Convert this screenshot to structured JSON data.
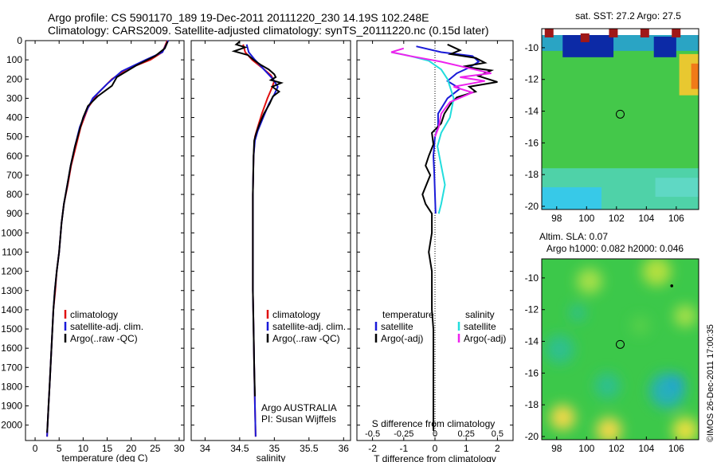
{
  "header": {
    "line1": "Argo profile: CS 5901170_189 19-Dec-2011 20111220_230 14.19S 102.248E",
    "line2": "Climatology: CARS2009. Satellite-adjusted climatology: synTS_20111220.nc (0.15d later)"
  },
  "stamp": "©IMOS 26-Dec-2011 17:00:35",
  "colors": {
    "climatology": "#e01010",
    "satellite": "#1a1ad8",
    "argo": "#000000",
    "cyan": "#22dddd",
    "magenta": "#ee22ee"
  },
  "chart_data": [
    {
      "type": "line",
      "xlabel": "temperature (deg C)",
      "ylabel": "",
      "xlim": [
        -2,
        31
      ],
      "ylim": [
        2080,
        0
      ],
      "xticks": [
        0,
        5,
        10,
        15,
        20,
        25,
        30
      ],
      "yticks": [
        0,
        100,
        200,
        300,
        400,
        500,
        600,
        700,
        800,
        900,
        1000,
        1100,
        1200,
        1300,
        1400,
        1500,
        1600,
        1700,
        1800,
        1900,
        2000
      ],
      "legend": [
        "climatology",
        "satellite-adj. clim.",
        "Argo(..raw -QC)"
      ],
      "legend_loc": "bottom-middle",
      "series": [
        {
          "name": "climatology",
          "color_key": "climatology",
          "points": [
            [
              27.5,
              0
            ],
            [
              26.5,
              60
            ],
            [
              24,
              100
            ],
            [
              19,
              150
            ],
            [
              16,
              200
            ],
            [
              13,
              275
            ],
            [
              11,
              350
            ],
            [
              9.5,
              450
            ],
            [
              8.5,
              550
            ],
            [
              7.5,
              650
            ],
            [
              6.8,
              750
            ],
            [
              6,
              850
            ],
            [
              5.5,
              950
            ],
            [
              5,
              1100
            ],
            [
              4.5,
              1200
            ],
            [
              4.2,
              1300
            ],
            [
              3.8,
              1400
            ],
            [
              3.6,
              1500
            ],
            [
              3.4,
              1600
            ],
            [
              3.2,
              1700
            ],
            [
              3.0,
              1800
            ],
            [
              2.8,
              1900
            ],
            [
              2.6,
              2000
            ],
            [
              2.5,
              2060
            ]
          ]
        },
        {
          "name": "satellite-adj. clim.",
          "color_key": "satellite",
          "points": [
            [
              27.7,
              0
            ],
            [
              26.5,
              60
            ],
            [
              23,
              100
            ],
            [
              18,
              160
            ],
            [
              15,
              225
            ],
            [
              12,
              300
            ],
            [
              10.5,
              375
            ],
            [
              9.3,
              450
            ],
            [
              8.3,
              550
            ],
            [
              7.4,
              650
            ],
            [
              6.7,
              750
            ],
            [
              6,
              850
            ],
            [
              5.5,
              950
            ],
            [
              5,
              1100
            ],
            [
              4.5,
              1200
            ],
            [
              4.1,
              1300
            ],
            [
              3.8,
              1400
            ],
            [
              3.6,
              1500
            ],
            [
              3.4,
              1600
            ],
            [
              3.2,
              1700
            ],
            [
              3.0,
              1800
            ],
            [
              2.8,
              1900
            ],
            [
              2.6,
              2000
            ],
            [
              2.5,
              2060
            ]
          ]
        },
        {
          "name": "Argo(..raw -QC)",
          "color_key": "argo",
          "points": [
            [
              27.6,
              5
            ],
            [
              27,
              40
            ],
            [
              25,
              80
            ],
            [
              21,
              130
            ],
            [
              17,
              190
            ],
            [
              16,
              235
            ],
            [
              13,
              290
            ],
            [
              11,
              340
            ],
            [
              10,
              400
            ],
            [
              9.2,
              470
            ],
            [
              8.3,
              550
            ],
            [
              7.4,
              650
            ],
            [
              6.7,
              750
            ],
            [
              6,
              850
            ],
            [
              5.5,
              950
            ],
            [
              5,
              1100
            ],
            [
              4.5,
              1200
            ],
            [
              4.1,
              1300
            ],
            [
              3.8,
              1400
            ],
            [
              3.6,
              1500
            ],
            [
              3.4,
              1600
            ],
            [
              3.2,
              1700
            ],
            [
              3.0,
              1800
            ],
            [
              2.8,
              1900
            ],
            [
              2.6,
              2000
            ],
            [
              2.5,
              2040
            ]
          ]
        }
      ]
    },
    {
      "type": "line",
      "xlabel": "salinity",
      "xlim": [
        33.8,
        36.1
      ],
      "ylim": [
        2080,
        0
      ],
      "xticks": [
        34,
        34.5,
        35,
        35.5,
        36
      ],
      "legend": [
        "climatology",
        "satellite-adj. clim.",
        "Argo(..raw -QC)"
      ],
      "legend_loc": "bottom-right",
      "annotation": [
        "Argo AUSTRALIA",
        "PI: Susan Wijffels"
      ],
      "series": [
        {
          "name": "climatology",
          "color_key": "climatology",
          "points": [
            [
              34.55,
              20
            ],
            [
              34.58,
              60
            ],
            [
              34.68,
              100
            ],
            [
              34.82,
              140
            ],
            [
              34.95,
              180
            ],
            [
              35.0,
              210
            ],
            [
              34.96,
              250
            ],
            [
              34.9,
              300
            ],
            [
              34.82,
              380
            ],
            [
              34.76,
              450
            ],
            [
              34.72,
              500
            ],
            [
              34.7,
              600
            ],
            [
              34.69,
              800
            ],
            [
              34.69,
              1000
            ],
            [
              34.69,
              1300
            ],
            [
              34.7,
              1500
            ],
            [
              34.71,
              1700
            ],
            [
              34.72,
              1900
            ],
            [
              34.73,
              2060
            ]
          ]
        },
        {
          "name": "satellite-adj. clim.",
          "color_key": "satellite",
          "points": [
            [
              34.6,
              20
            ],
            [
              34.63,
              60
            ],
            [
              34.72,
              100
            ],
            [
              34.85,
              150
            ],
            [
              34.98,
              200
            ],
            [
              35.05,
              240
            ],
            [
              35.0,
              280
            ],
            [
              34.92,
              330
            ],
            [
              34.84,
              400
            ],
            [
              34.76,
              470
            ],
            [
              34.72,
              520
            ],
            [
              34.7,
              600
            ],
            [
              34.69,
              800
            ],
            [
              34.69,
              1000
            ],
            [
              34.69,
              1300
            ],
            [
              34.7,
              1500
            ],
            [
              34.71,
              1700
            ],
            [
              34.72,
              1900
            ],
            [
              34.73,
              2060
            ]
          ]
        },
        {
          "name": "Argo(..raw -QC)",
          "color_key": "argo",
          "points": [
            [
              34.5,
              5
            ],
            [
              34.45,
              20
            ],
            [
              34.58,
              35
            ],
            [
              34.42,
              55
            ],
            [
              34.62,
              75
            ],
            [
              34.7,
              100
            ],
            [
              34.8,
              125
            ],
            [
              34.92,
              150
            ],
            [
              35.0,
              175
            ],
            [
              35.02,
              190
            ],
            [
              34.95,
              205
            ],
            [
              35.1,
              220
            ],
            [
              34.97,
              240
            ],
            [
              35.07,
              265
            ],
            [
              34.98,
              290
            ],
            [
              34.93,
              330
            ],
            [
              34.85,
              380
            ],
            [
              34.79,
              430
            ],
            [
              34.74,
              480
            ],
            [
              34.71,
              520
            ],
            [
              34.7,
              600
            ],
            [
              34.69,
              800
            ],
            [
              34.69,
              1000
            ],
            [
              34.69,
              1300
            ],
            [
              34.7,
              1500
            ],
            [
              34.71,
              1700
            ],
            [
              34.72,
              1850
            ]
          ]
        }
      ]
    },
    {
      "type": "line",
      "xlabel": "T difference from climatology",
      "xlabel_top": "S difference from climatology",
      "xlim": [
        -2.5,
        2.5
      ],
      "ylim": [
        2080,
        0
      ],
      "xticks": [
        -2,
        -1,
        0,
        1,
        2
      ],
      "xticks_s": [
        -0.5,
        -0.25,
        0,
        0.25,
        0.5
      ],
      "legend_t": [
        "temperature",
        "satellite",
        "Argo(-adj)"
      ],
      "legend_s": [
        "salinity",
        "satellite",
        "Argo(-adj)"
      ],
      "legend_loc": "bottom",
      "series": [
        {
          "name": "temperature satellite",
          "color_key": "satellite",
          "points": [
            [
              -0.6,
              30
            ],
            [
              0.2,
              60
            ],
            [
              1.2,
              80
            ],
            [
              1.4,
              110
            ],
            [
              1.1,
              140
            ],
            [
              0.7,
              170
            ],
            [
              0.4,
              210
            ],
            [
              0.8,
              250
            ],
            [
              0.4,
              300
            ],
            [
              0.1,
              380
            ],
            [
              0.1,
              450
            ],
            [
              0.0,
              500
            ],
            [
              -0.05,
              600
            ],
            [
              -0.02,
              700
            ],
            [
              0.0,
              800
            ],
            [
              0.02,
              900
            ]
          ]
        },
        {
          "name": "temperature Argo(-adj)",
          "color_key": "argo",
          "points": [
            [
              0.4,
              20
            ],
            [
              0.8,
              50
            ],
            [
              0.5,
              70
            ],
            [
              1.3,
              90
            ],
            [
              1.6,
              115
            ],
            [
              0.9,
              135
            ],
            [
              1.8,
              155
            ],
            [
              1.4,
              185
            ],
            [
              2.0,
              215
            ],
            [
              1.1,
              240
            ],
            [
              1.3,
              265
            ],
            [
              0.7,
              295
            ],
            [
              0.5,
              330
            ],
            [
              0.3,
              380
            ],
            [
              0.2,
              430
            ],
            [
              -0.1,
              480
            ],
            [
              -0.05,
              540
            ],
            [
              -0.2,
              600
            ],
            [
              -0.3,
              650
            ],
            [
              -0.15,
              700
            ],
            [
              -0.4,
              800
            ],
            [
              -0.3,
              850
            ],
            [
              -0.1,
              900
            ],
            [
              -0.1,
              1000
            ],
            [
              -0.2,
              1100
            ],
            [
              -0.1,
              1200
            ],
            [
              -0.1,
              1300
            ],
            [
              -0.1,
              1400
            ],
            [
              -0.05,
              1500
            ],
            [
              -0.05,
              1600
            ],
            [
              -0.05,
              1700
            ],
            [
              -0.05,
              1800
            ],
            [
              -0.05,
              1900
            ],
            [
              -0.05,
              2030
            ]
          ]
        },
        {
          "name": "salinity satellite",
          "color_key": "cyan",
          "points": [
            [
              -0.35,
              60
            ],
            [
              -0.2,
              80
            ],
            [
              -0.05,
              105
            ],
            [
              0.05,
              150
            ],
            [
              0.1,
              200
            ],
            [
              0.15,
              300
            ],
            [
              0.12,
              400
            ],
            [
              0.05,
              480
            ],
            [
              0.02,
              550
            ],
            [
              0.05,
              650
            ],
            [
              0.08,
              750
            ],
            [
              0.05,
              850
            ],
            [
              0.03,
              900
            ]
          ]
        },
        {
          "name": "salinity Argo(-adj)",
          "color_key": "magenta",
          "points": [
            [
              -0.25,
              40
            ],
            [
              -0.35,
              60
            ],
            [
              -0.2,
              80
            ],
            [
              0.05,
              110
            ],
            [
              0.25,
              140
            ],
            [
              0.45,
              170
            ],
            [
              0.2,
              190
            ],
            [
              0.4,
              210
            ],
            [
              0.15,
              240
            ],
            [
              0.3,
              270
            ],
            [
              0.12,
              320
            ],
            [
              0.05,
              380
            ],
            [
              0.03,
              450
            ],
            [
              0.0,
              500
            ]
          ]
        }
      ]
    },
    {
      "type": "heatmap",
      "title": "sat. SST: 27.2  Argo: 27.5",
      "xlim": [
        97,
        107.5
      ],
      "ylim": [
        -20.2,
        -8.8
      ],
      "xticks": [
        98,
        100,
        102,
        104,
        106
      ],
      "yticks": [
        -10,
        -12,
        -14,
        -16,
        -18,
        -20
      ],
      "marker": {
        "lon": 102.25,
        "lat": -14.19
      }
    },
    {
      "type": "heatmap",
      "title": "Altim. SLA: 0.07",
      "subtitle": "Argo h1000: 0.082 h2000: 0.046",
      "xlim": [
        97,
        107.5
      ],
      "ylim": [
        -20.2,
        -8.8
      ],
      "xticks": [
        98,
        100,
        102,
        104,
        106
      ],
      "yticks": [
        -10,
        -12,
        -14,
        -16,
        -18,
        -20
      ],
      "marker": {
        "lon": 102.25,
        "lat": -14.19
      }
    }
  ]
}
